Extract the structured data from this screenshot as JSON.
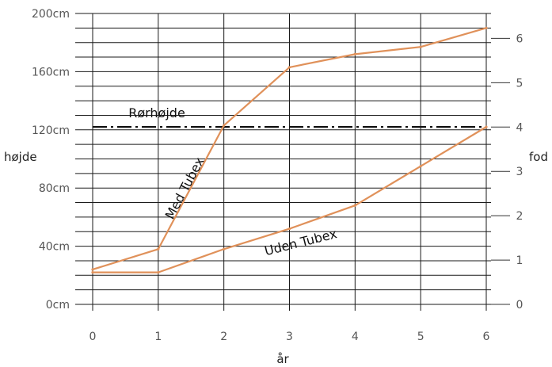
{
  "chart_data": {
    "type": "line",
    "x_axis": {
      "label": "år",
      "ticks": [
        "0",
        "1",
        "2",
        "3",
        "4",
        "5",
        "6"
      ],
      "range": [
        0,
        6
      ]
    },
    "y_axis_left": {
      "label": "højde",
      "ticks": [
        "0cm",
        "40cm",
        "80cm",
        "120cm",
        "160cm",
        "200cm"
      ],
      "tick_values": [
        0,
        40,
        80,
        120,
        160,
        200
      ],
      "range": [
        0,
        200
      ],
      "unit": "cm"
    },
    "y_axis_right": {
      "label": "fod",
      "ticks": [
        "0",
        "1",
        "2",
        "3",
        "4",
        "5",
        "6"
      ],
      "tick_values": [
        0,
        1,
        2,
        3,
        4,
        5,
        6
      ],
      "unit": "ft"
    },
    "grid": true,
    "series": [
      {
        "name": "Med Tubex",
        "color": "#e0915a",
        "x": [
          0,
          1,
          2,
          3,
          4,
          5,
          6
        ],
        "y": [
          24,
          38,
          123,
          163,
          172,
          177,
          190
        ]
      },
      {
        "name": "Uden Tubex",
        "color": "#e0915a",
        "x": [
          0,
          1,
          2,
          3,
          4,
          5,
          6
        ],
        "y": [
          22,
          22,
          38,
          52,
          68,
          95,
          122
        ]
      }
    ],
    "reference_line": {
      "label": "Rørhøjde",
      "y": 122,
      "style": "dash-dot",
      "color": "#111111"
    }
  }
}
